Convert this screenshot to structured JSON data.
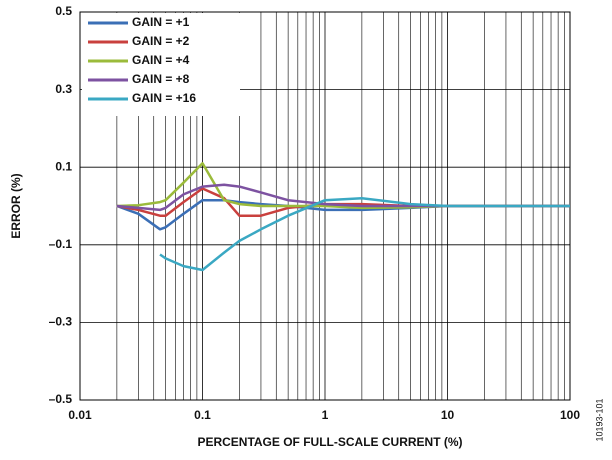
{
  "chart_data": {
    "type": "line",
    "x_label": "PERCENTAGE OF FULL-SCALE CURRENT (%)",
    "y_label": "ERROR (%)",
    "figure_id": "10193-101",
    "x_scale": "log",
    "xlim": [
      0.01,
      100
    ],
    "xticks": [
      0.01,
      0.1,
      1,
      10,
      100
    ],
    "x_minor_ticks": [
      0.02,
      0.03,
      0.04,
      0.05,
      0.06,
      0.07,
      0.08,
      0.09,
      0.2,
      0.3,
      0.4,
      0.5,
      0.6,
      0.7,
      0.8,
      0.9,
      2,
      3,
      4,
      5,
      6,
      7,
      8,
      9,
      20,
      30,
      40,
      50,
      60,
      70,
      80,
      90
    ],
    "ylim": [
      -0.5,
      0.5
    ],
    "yticks": [
      {
        "value": -0.5,
        "label": "–0.5"
      },
      {
        "value": -0.3,
        "label": "–0.3"
      },
      {
        "value": -0.1,
        "label": "–0.1"
      },
      0.1,
      0.3,
      0.5
    ],
    "grid": true,
    "legend": "upper left",
    "x": [
      0.02,
      0.03,
      0.045,
      0.05,
      0.07,
      0.1,
      0.15,
      0.2,
      0.3,
      0.5,
      1,
      2,
      5,
      10,
      20,
      50,
      100
    ],
    "series": [
      {
        "name": "GAIN = +1",
        "color": "#3b6fb6",
        "values": [
          0,
          -0.02,
          -0.06,
          -0.055,
          -0.02,
          0.015,
          0.015,
          0.01,
          0.005,
          0,
          -0.01,
          -0.01,
          -0.005,
          0,
          0,
          0,
          0
        ]
      },
      {
        "name": "GAIN = +2",
        "color": "#c9403e",
        "values": [
          0,
          -0.01,
          -0.025,
          -0.025,
          0.01,
          0.045,
          0.02,
          -0.025,
          -0.025,
          -0.005,
          0.005,
          0.005,
          0,
          0,
          0,
          0,
          0
        ]
      },
      {
        "name": "GAIN = +4",
        "color": "#9bbb3b",
        "values": [
          0,
          0.002,
          0.01,
          0.015,
          0.06,
          0.11,
          0.015,
          0.005,
          0,
          0,
          0,
          -0.005,
          -0.003,
          0,
          0,
          0,
          0
        ]
      },
      {
        "name": "GAIN = +8",
        "color": "#7d52a1",
        "values": [
          0,
          -0.005,
          -0.01,
          -0.005,
          0.03,
          0.05,
          0.055,
          0.05,
          0.035,
          0.015,
          0.005,
          0,
          0,
          0,
          0,
          0,
          0
        ]
      },
      {
        "name": "GAIN = +16",
        "color": "#3aa8c3",
        "values": [
          null,
          null,
          -0.125,
          -0.135,
          -0.155,
          -0.165,
          -0.12,
          -0.09,
          -0.06,
          -0.025,
          0.015,
          0.02,
          0.005,
          0,
          0,
          0,
          0
        ]
      }
    ]
  }
}
